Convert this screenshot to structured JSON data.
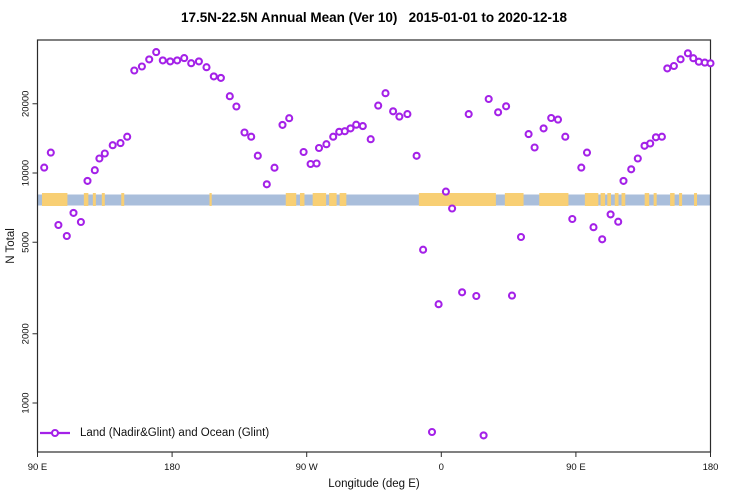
{
  "chart_data": {
    "type": "scatter",
    "title": "17.5N-22.5N Annual Mean (Ver 10)   2015-01-01 to 2020-12-18",
    "xlabel": "Longitude (deg E)",
    "ylabel": "N Total",
    "x_axis": {
      "tick_deg": [
        90,
        180,
        270,
        360,
        450,
        540
      ],
      "tick_labels": [
        "90 E",
        "180",
        "90 W",
        "0",
        "90 E",
        "180"
      ],
      "range_deg": [
        90,
        540
      ]
    },
    "y_axis": {
      "scale": "log10",
      "ticks": [
        20000,
        10000,
        5000,
        2000,
        1000
      ],
      "tick_labels": [
        "20000",
        "10000",
        "5000",
        "2000",
        "1000"
      ],
      "range": [
        620,
        39000
      ],
      "grid": false
    },
    "legend": {
      "label": "Land (Nadir&Glint) and Ocean (Glint)",
      "position": "bottom-left"
    },
    "colors": {
      "marker": "#A421E8",
      "ocean_band": "#A9BEDB",
      "land_band": "#F8CF74",
      "axis": "#2B2B2B",
      "text": "#111111"
    },
    "map_band": {
      "n_range": [
        7300,
        8200
      ],
      "land_segments_deg": [
        [
          93,
          110
        ],
        [
          121,
          124
        ],
        [
          127,
          129
        ],
        [
          133,
          135
        ],
        [
          146,
          148
        ],
        [
          205,
          206.5
        ],
        [
          256,
          263
        ],
        [
          265.5,
          268.5
        ],
        [
          274,
          283
        ],
        [
          285,
          290
        ],
        [
          292,
          296.5
        ],
        [
          345,
          396.5
        ],
        [
          402.5,
          415
        ],
        [
          425.5,
          445
        ],
        [
          456,
          465
        ],
        [
          466.5,
          469.5
        ],
        [
          471,
          473.5
        ],
        [
          476,
          478.5
        ],
        [
          480.5,
          483
        ],
        [
          496,
          499
        ],
        [
          502,
          504
        ],
        [
          513,
          516
        ],
        [
          519,
          521
        ],
        [
          529,
          531
        ]
      ]
    },
    "points": [
      [
        94.5,
        10560
      ],
      [
        98.9,
        12270
      ],
      [
        104,
        5940
      ],
      [
        109.6,
        5320
      ],
      [
        114.1,
        6710
      ],
      [
        119,
        6120
      ],
      [
        123.4,
        9240
      ],
      [
        128.3,
        10280
      ],
      [
        131.4,
        11560
      ],
      [
        135,
        12160
      ],
      [
        140.3,
        13210
      ],
      [
        145.5,
        13490
      ],
      [
        150,
        14380
      ],
      [
        154.7,
        27900
      ],
      [
        159.8,
        29050
      ],
      [
        164.7,
        31180
      ],
      [
        169.4,
        33560
      ],
      [
        173.8,
        30880
      ],
      [
        178.7,
        30560
      ],
      [
        183.4,
        30880
      ],
      [
        188.1,
        31600
      ],
      [
        192.8,
        30030
      ],
      [
        197.9,
        30560
      ],
      [
        203,
        28840
      ],
      [
        207.9,
        26300
      ],
      [
        212.6,
        25920
      ],
      [
        218.6,
        21570
      ],
      [
        223,
        19450
      ],
      [
        228.4,
        15000
      ],
      [
        232.9,
        14380
      ],
      [
        237.3,
        11890
      ],
      [
        243.3,
        8930
      ],
      [
        248.5,
        10540
      ],
      [
        253.8,
        16180
      ],
      [
        258.3,
        17300
      ],
      [
        267.9,
        12340
      ],
      [
        272.6,
        10940
      ],
      [
        276.6,
        11000
      ],
      [
        278.2,
        12850
      ],
      [
        283.2,
        13340
      ],
      [
        287.7,
        14380
      ],
      [
        291.7,
        15110
      ],
      [
        295.5,
        15200
      ],
      [
        299.3,
        15630
      ],
      [
        303.1,
        16220
      ],
      [
        307.5,
        16000
      ],
      [
        312.8,
        14030
      ],
      [
        317.8,
        19630
      ],
      [
        322.7,
        22230
      ],
      [
        327.8,
        18540
      ],
      [
        332,
        17580
      ],
      [
        337.3,
        18030
      ],
      [
        343.5,
        11880
      ],
      [
        347.8,
        4640
      ],
      [
        353.8,
        748
      ],
      [
        358.2,
        2690
      ],
      [
        363.1,
        8300
      ],
      [
        367.2,
        7010
      ],
      [
        373.9,
        3030
      ],
      [
        378.3,
        18030
      ],
      [
        383.4,
        2920
      ],
      [
        388.3,
        723
      ],
      [
        391.7,
        20980
      ],
      [
        398,
        18360
      ],
      [
        403.3,
        19500
      ],
      [
        407.3,
        2930
      ],
      [
        413.3,
        5270
      ],
      [
        418.4,
        14760
      ],
      [
        422.4,
        12910
      ],
      [
        428.4,
        15630
      ],
      [
        433.5,
        17340
      ],
      [
        438,
        17060
      ],
      [
        442.9,
        14380
      ],
      [
        447.6,
        6310
      ],
      [
        453.6,
        10560
      ],
      [
        457.4,
        12270
      ],
      [
        461.8,
        5810
      ],
      [
        467.6,
        5150
      ],
      [
        473.2,
        6610
      ],
      [
        478.3,
        6140
      ],
      [
        481.8,
        9240
      ],
      [
        487,
        10380
      ],
      [
        491.4,
        11560
      ],
      [
        495.9,
        13130
      ],
      [
        499.7,
        13430
      ],
      [
        503.5,
        14290
      ],
      [
        507.5,
        14380
      ],
      [
        511.1,
        28500
      ],
      [
        515.5,
        29180
      ],
      [
        520,
        31200
      ],
      [
        524.9,
        33130
      ],
      [
        528.5,
        31550
      ],
      [
        532.2,
        30480
      ],
      [
        536.2,
        30200
      ],
      [
        540,
        30000
      ]
    ]
  }
}
